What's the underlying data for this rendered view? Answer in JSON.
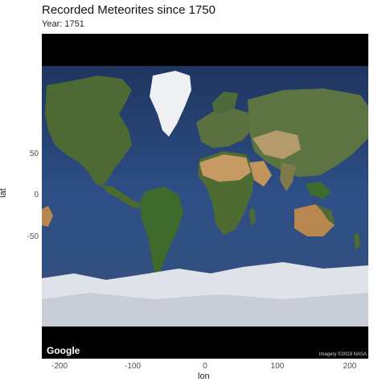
{
  "title": "Recorded Meteorites since 1750",
  "subtitle": "Year: 1751",
  "axes": {
    "xlabel": "lon",
    "ylabel": "lat",
    "x_ticks": [
      "-200",
      "-100",
      "0",
      "100",
      "200"
    ],
    "y_ticks": [
      "50",
      "0",
      "-50"
    ]
  },
  "map": {
    "logo": "Google",
    "attribution": "Imagery ©2019 NASA",
    "colors": {
      "ocean": "#2b4a7e",
      "land": "#4f6b34",
      "desert": "#c79a63",
      "ice": "#e6e8ee",
      "band": "#000000"
    }
  }
}
